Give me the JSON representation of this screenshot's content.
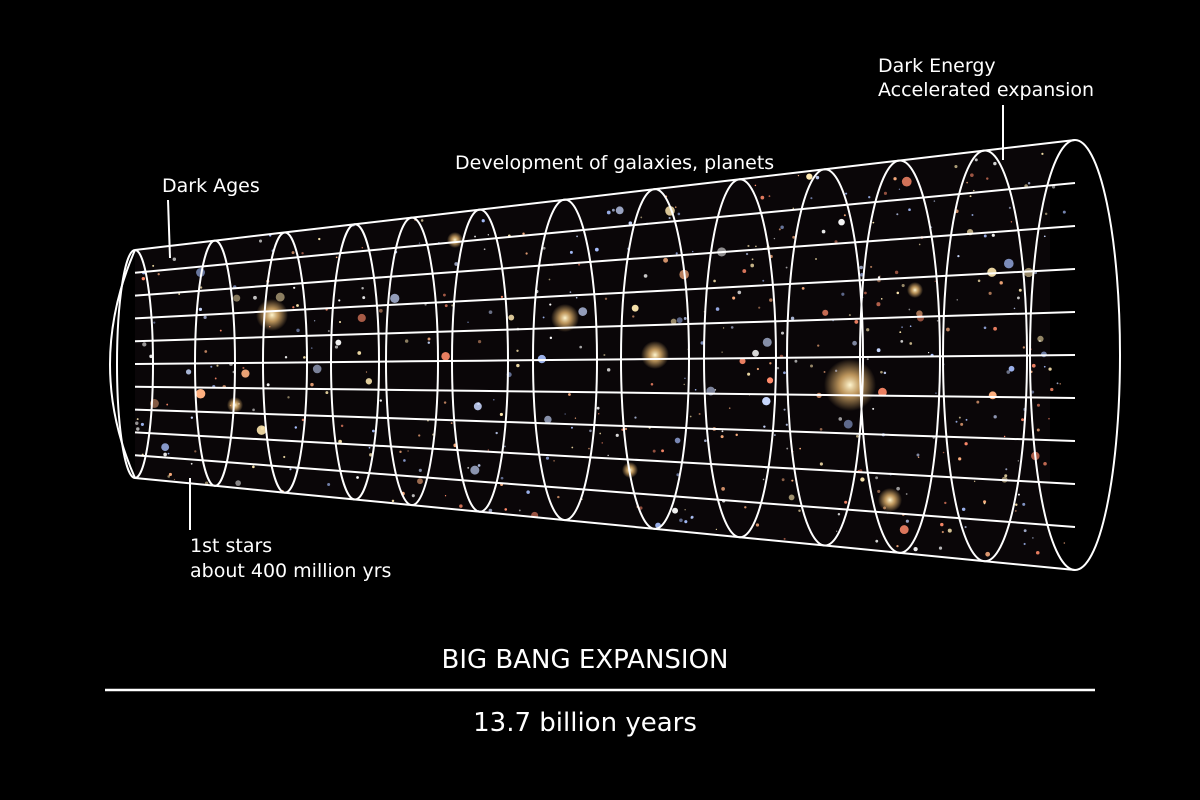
{
  "labels": {
    "dark_ages": "Dark Ages",
    "development": "Development of galaxies, planets",
    "dark_energy": "Dark Energy",
    "accelerated": "Accelerated expansion",
    "first_stars": "1st stars",
    "first_stars_time": "about 400 million yrs"
  },
  "footer": {
    "title": "BIG BANG EXPANSION",
    "duration": "13.7 billion years"
  }
}
